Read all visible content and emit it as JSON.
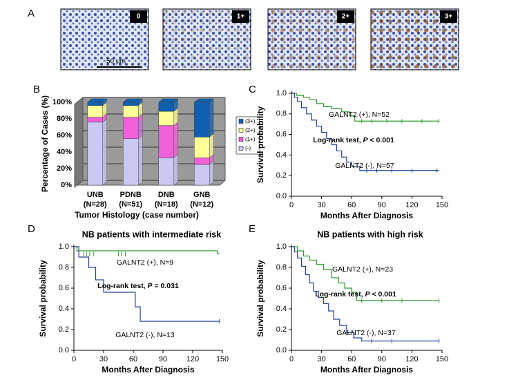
{
  "panel_a": {
    "panel": "A",
    "images": [
      "0",
      "1+",
      "2+",
      "3+"
    ],
    "scale_bar": "50 μm"
  },
  "chart_data": [
    {
      "type": "stacked_bar",
      "panel": "B",
      "ylabel": "Percentage of Cases (%)",
      "xlabel": "Tumor Histology (case number)",
      "categories": [
        "UNB",
        "PDNB",
        "DNB",
        "GNB"
      ],
      "category_counts": [
        "(N=28)",
        "(N=51)",
        "(N=18)",
        "(N=12)"
      ],
      "ylim": [
        0,
        100
      ],
      "yticks": [
        {
          "value": 0,
          "label": "0%"
        },
        {
          "value": 20,
          "label": "20%"
        },
        {
          "value": 40,
          "label": "40%"
        },
        {
          "value": 60,
          "label": "60%"
        },
        {
          "value": 80,
          "label": "80%"
        },
        {
          "value": 100,
          "label": "100%"
        }
      ],
      "grid": true,
      "series": [
        {
          "name": "(-)",
          "color": "#c8c8f2",
          "values": [
            76,
            56,
            33,
            25
          ]
        },
        {
          "name": "(1+)",
          "color": "#f060d8",
          "values": [
            6,
            26,
            39,
            8
          ]
        },
        {
          "name": "(2+)",
          "color": "#ffff99",
          "values": [
            14,
            14,
            17,
            25
          ]
        },
        {
          "name": "(3+)",
          "color": "#1060b0",
          "values": [
            4,
            4,
            11,
            42
          ]
        }
      ]
    },
    {
      "type": "km",
      "panel": "C",
      "ylabel": "Survival probability",
      "xlabel": "Months After Diagnosis",
      "xlim": [
        0,
        150
      ],
      "xticks": [
        0,
        30,
        60,
        90,
        120,
        150
      ],
      "ylim": [
        0,
        1
      ],
      "yticks": [
        {
          "value": 0,
          "label": "0.0"
        },
        0.2,
        0.4,
        0.6,
        0.8,
        {
          "value": 1,
          "label": "1.0"
        }
      ],
      "annotations": [
        [
          "GALNT2 (+), N=52"
        ],
        [
          "Log-rank test, ",
          "P",
          " < 0.001"
        ],
        [
          "GALNT2 (-), N=57"
        ]
      ],
      "series": [
        {
          "color": "#2a9a2a",
          "x": [
            0,
            5,
            5,
            12,
            12,
            18,
            18,
            25,
            25,
            32,
            32,
            40,
            40,
            50,
            50,
            58,
            58,
            63,
            63,
            147
          ],
          "values": [
            1,
            1,
            0.98,
            0.98,
            0.96,
            0.96,
            0.94,
            0.94,
            0.9,
            0.9,
            0.87,
            0.87,
            0.85,
            0.85,
            0.82,
            0.82,
            0.78,
            0.78,
            0.73,
            0.73
          ],
          "censored_x": [
            70,
            80,
            95,
            110,
            130,
            147
          ],
          "censored_values": [
            0.73,
            0.73,
            0.73,
            0.73,
            0.73,
            0.73
          ]
        },
        {
          "color": "#2040a0",
          "x": [
            0,
            3,
            3,
            6,
            6,
            10,
            10,
            15,
            15,
            20,
            20,
            25,
            25,
            30,
            30,
            35,
            35,
            40,
            40,
            45,
            45,
            50,
            50,
            55,
            55,
            60,
            60,
            68,
            68,
            147
          ],
          "values": [
            1,
            1,
            0.96,
            0.96,
            0.92,
            0.92,
            0.86,
            0.86,
            0.8,
            0.8,
            0.74,
            0.74,
            0.68,
            0.68,
            0.62,
            0.62,
            0.56,
            0.56,
            0.5,
            0.5,
            0.44,
            0.44,
            0.38,
            0.38,
            0.33,
            0.33,
            0.29,
            0.29,
            0.25,
            0.25
          ],
          "censored_x": [
            75,
            85,
            100,
            120,
            145
          ],
          "censored_values": [
            0.25,
            0.25,
            0.25,
            0.25,
            0.25
          ]
        }
      ]
    },
    {
      "type": "km",
      "panel": "D",
      "title": "NB patients with intermediate risk",
      "ylabel": "Survival probability",
      "xlabel": "Months After Diagnosis",
      "xlim": [
        0,
        150
      ],
      "xticks": [
        0,
        30,
        60,
        90,
        120,
        150
      ],
      "ylim": [
        0,
        1
      ],
      "yticks": [
        {
          "value": 0,
          "label": "0.0"
        },
        0.2,
        0.4,
        0.6,
        0.8,
        {
          "value": 1,
          "label": "1.0"
        }
      ],
      "annotations": [
        [
          "GALNT2 (+), N=9"
        ],
        [
          "Log-rank test, ",
          "P",
          " = 0.031"
        ],
        [
          "GALNT2 (-), N=13"
        ]
      ],
      "series": [
        {
          "color": "#2a9a2a",
          "x": [
            0,
            3,
            3,
            145,
            145,
            147
          ],
          "values": [
            1,
            1,
            0.96,
            0.96,
            0.93,
            0.93
          ],
          "censored_x": [
            10,
            13,
            16,
            20,
            45,
            48,
            52
          ],
          "censored_values": [
            0.93,
            0.93,
            0.93,
            0.93,
            0.93,
            0.93,
            0.93
          ]
        },
        {
          "color": "#2040a0",
          "x": [
            0,
            5,
            5,
            15,
            15,
            22,
            22,
            30,
            30,
            62,
            62,
            67,
            67,
            147
          ],
          "values": [
            1,
            1,
            0.9,
            0.9,
            0.8,
            0.8,
            0.68,
            0.68,
            0.56,
            0.56,
            0.42,
            0.42,
            0.28,
            0.28
          ],
          "censored_x": [
            147
          ],
          "censored_values": [
            0.28
          ]
        }
      ]
    },
    {
      "type": "km",
      "panel": "E",
      "title": "NB patients with high risk",
      "ylabel": "Survival probability",
      "xlabel": "Months After Diagnosis",
      "xlim": [
        0,
        150
      ],
      "xticks": [
        0,
        30,
        60,
        90,
        120,
        150
      ],
      "ylim": [
        0,
        1
      ],
      "yticks": [
        {
          "value": 0,
          "label": "0.0"
        },
        0.2,
        0.4,
        0.6,
        0.8,
        {
          "value": 1,
          "label": "1.0"
        }
      ],
      "annotations": [
        [
          "GALNT2 (+), N=23"
        ],
        [
          "Log-rank test, ",
          "P",
          " < 0.001"
        ],
        [
          "GALNT2 (-), N=37"
        ]
      ],
      "series": [
        {
          "color": "#2a9a2a",
          "x": [
            0,
            6,
            6,
            12,
            12,
            18,
            18,
            25,
            25,
            32,
            32,
            40,
            40,
            47,
            47,
            53,
            53,
            60,
            60,
            65,
            65,
            147
          ],
          "values": [
            1,
            1,
            0.96,
            0.96,
            0.91,
            0.91,
            0.87,
            0.87,
            0.83,
            0.83,
            0.78,
            0.78,
            0.7,
            0.7,
            0.65,
            0.65,
            0.6,
            0.6,
            0.56,
            0.56,
            0.48,
            0.48
          ],
          "censored_x": [
            70,
            90,
            110,
            147
          ],
          "censored_values": [
            0.48,
            0.48,
            0.48,
            0.48
          ]
        },
        {
          "color": "#2040a0",
          "x": [
            0,
            3,
            3,
            6,
            6,
            10,
            10,
            14,
            14,
            18,
            18,
            22,
            22,
            27,
            27,
            32,
            32,
            37,
            37,
            42,
            42,
            48,
            48,
            55,
            55,
            62,
            62,
            70,
            70,
            147
          ],
          "values": [
            1,
            1,
            0.95,
            0.95,
            0.89,
            0.89,
            0.81,
            0.81,
            0.73,
            0.73,
            0.65,
            0.65,
            0.57,
            0.57,
            0.51,
            0.51,
            0.45,
            0.45,
            0.38,
            0.38,
            0.3,
            0.3,
            0.24,
            0.24,
            0.17,
            0.17,
            0.12,
            0.12,
            0.09,
            0.09
          ],
          "censored_x": [
            80,
            100,
            147
          ],
          "censored_values": [
            0.09,
            0.09,
            0.09
          ]
        }
      ]
    }
  ]
}
